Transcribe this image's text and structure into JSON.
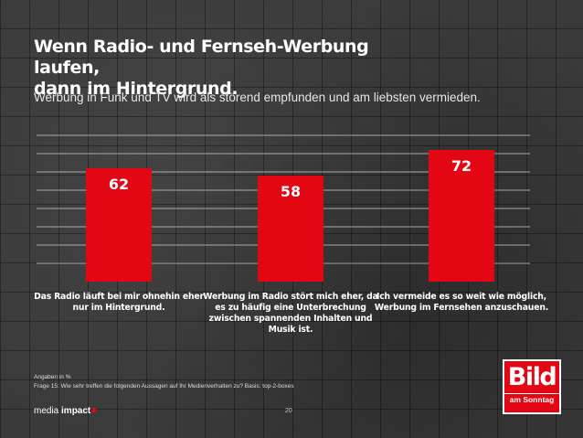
{
  "title_line1": "Wenn Radio- und Fernseh-Werbung laufen,",
  "title_line2": "dann im Hintergrund.",
  "subtitle": "Werbung in Funk und TV wird als störend empfunden und am liebsten vermieden.",
  "chart_data": {
    "type": "bar",
    "categories": [
      "Das Radio läuft bei mir ohnehin eher nur im Hintergrund.",
      "Werbung im Radio stört mich eher, da es zu häufig eine Unterbrechung zwischen spannenden Inhalten und Musik ist.",
      "Ich vermeide es so weit wie möglich, Werbung im Fernsehen anzuschauen."
    ],
    "values": [
      62,
      58,
      72
    ],
    "value_labels": [
      "62",
      "58",
      "72"
    ],
    "ylim": [
      0,
      80
    ],
    "gridlines": true,
    "bar_color": "#e30613"
  },
  "footnote_units": "Angaben in %",
  "footnote_question": "Frage 15: Wie sehr treffen die folgenden Aussagen auf Ihr Medienverhalten zu? Basis: top-2-boxes",
  "brand_media": "media",
  "brand_impact": "impact",
  "page_number": "20",
  "logo_bild": "Bild",
  "logo_bild_sub": "am Sonntag",
  "colors": {
    "accent": "#e30613",
    "text": "#ffffff"
  }
}
